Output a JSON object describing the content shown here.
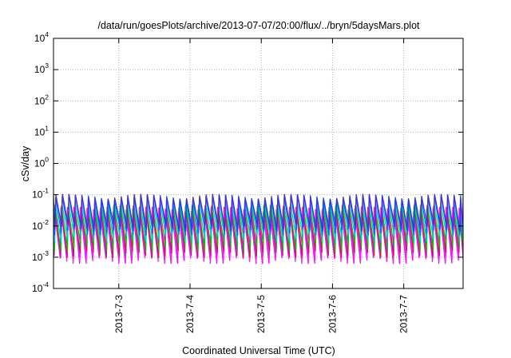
{
  "chart_data": {
    "type": "line",
    "title": "/data/run/goesPlots/archive/2013-07-07/20:00/flux/../bryn/5daysMars.plot",
    "xlabel": "Coordinated Universal Time (UTC)",
    "ylabel": "cSv/day",
    "yscale": "log",
    "ylim": [
      0.0001,
      10000
    ],
    "xlim": [
      "2013-07-02T02:00",
      "2013-07-07T20:00"
    ],
    "grid": true,
    "legend": "none",
    "y_ticks": [
      {
        "base": "10",
        "exp": "-4",
        "value": 0.0001
      },
      {
        "base": "10",
        "exp": "-3",
        "value": 0.001
      },
      {
        "base": "10",
        "exp": "-2",
        "value": 0.01
      },
      {
        "base": "10",
        "exp": "-1",
        "value": 0.1
      },
      {
        "base": "10",
        "exp": "0",
        "value": 1
      },
      {
        "base": "10",
        "exp": "1",
        "value": 10
      },
      {
        "base": "10",
        "exp": "2",
        "value": 100
      },
      {
        "base": "10",
        "exp": "3",
        "value": 1000
      },
      {
        "base": "10",
        "exp": "4",
        "value": 10000
      }
    ],
    "x_ticks": [
      {
        "label": "2013-7-3",
        "value": "2013-07-03T00:00"
      },
      {
        "label": "2013-7-4",
        "value": "2013-07-04T00:00"
      },
      {
        "label": "2013-7-5",
        "value": "2013-07-05T00:00"
      },
      {
        "label": "2013-7-6",
        "value": "2013-07-06T00:00"
      },
      {
        "label": "2013-7-7",
        "value": "2013-07-07T00:00"
      }
    ],
    "sawtooth_period_hours": 2.2,
    "series": [
      {
        "color": "#ff00ff",
        "peak": 0.035,
        "trough": 0.0008
      },
      {
        "color": "#ee22ee",
        "peak": 0.03,
        "trough": 0.0009
      },
      {
        "color": "#cc33cc",
        "peak": 0.04,
        "trough": 0.0012
      },
      {
        "color": "#c0185a",
        "peak": 0.035,
        "trough": 0.0013
      },
      {
        "color": "#22aa22",
        "peak": 0.045,
        "trough": 0.002
      },
      {
        "color": "#00cccc",
        "peak": 0.06,
        "trough": 0.004
      },
      {
        "color": "#2060ff",
        "peak": 0.085,
        "trough": 0.0065
      },
      {
        "color": "#4030d0",
        "peak": 0.09,
        "trough": 0.009
      }
    ]
  }
}
